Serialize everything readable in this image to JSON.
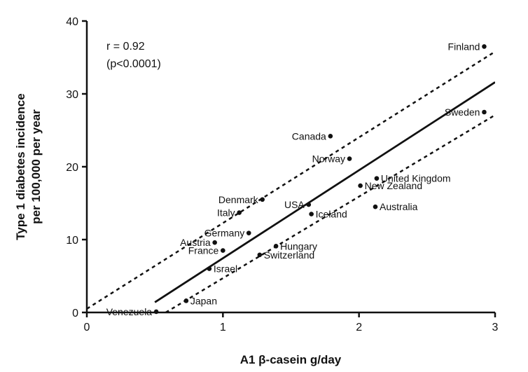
{
  "chart_data": {
    "type": "scatter",
    "xlabel": "A1 β-casein g/day",
    "ylabel_lines": [
      "Type 1 diabetes incidence",
      "per 100,000 per year"
    ],
    "xlim": [
      0,
      3
    ],
    "ylim": [
      0,
      40
    ],
    "xticks": [
      0,
      1,
      2,
      3
    ],
    "yticks": [
      0,
      10,
      20,
      30,
      40
    ],
    "annotations": [
      "r = 0.92",
      "(p<0.0001)"
    ],
    "grid": false,
    "points": [
      {
        "label": "Finland",
        "x": 2.92,
        "y": 36.5,
        "label_side": "left"
      },
      {
        "label": "Sweden",
        "x": 2.92,
        "y": 27.5,
        "label_side": "left"
      },
      {
        "label": "Canada",
        "x": 1.79,
        "y": 24.2,
        "label_side": "left"
      },
      {
        "label": "Norway",
        "x": 1.93,
        "y": 21.1,
        "label_side": "left"
      },
      {
        "label": "United Kingdom",
        "x": 2.13,
        "y": 18.4,
        "label_side": "right"
      },
      {
        "label": "New Zealand",
        "x": 2.01,
        "y": 17.4,
        "label_side": "right"
      },
      {
        "label": "Australia",
        "x": 2.12,
        "y": 14.5,
        "label_side": "right"
      },
      {
        "label": "Denmark",
        "x": 1.29,
        "y": 15.5,
        "label_side": "left"
      },
      {
        "label": "USA",
        "x": 1.63,
        "y": 14.8,
        "label_side": "left"
      },
      {
        "label": "Iceland",
        "x": 1.65,
        "y": 13.5,
        "label_side": "right"
      },
      {
        "label": "Italy",
        "x": 1.12,
        "y": 13.7,
        "label_side": "left"
      },
      {
        "label": "Germany",
        "x": 1.19,
        "y": 10.9,
        "label_side": "left"
      },
      {
        "label": "Austria",
        "x": 0.94,
        "y": 9.6,
        "label_side": "left"
      },
      {
        "label": "France",
        "x": 1.0,
        "y": 8.5,
        "label_side": "left"
      },
      {
        "label": "Hungary",
        "x": 1.39,
        "y": 9.1,
        "label_side": "right"
      },
      {
        "label": "Switzerland",
        "x": 1.27,
        "y": 7.9,
        "label_side": "right"
      },
      {
        "label": "Israel",
        "x": 0.9,
        "y": 6.0,
        "label_side": "right"
      },
      {
        "label": "Japan",
        "x": 0.73,
        "y": 1.6,
        "label_side": "right"
      },
      {
        "label": "Venezuela",
        "x": 0.51,
        "y": 0.1,
        "label_side": "left"
      }
    ],
    "regression_line": [
      [
        0.5,
        1.4
      ],
      [
        3.0,
        31.6
      ]
    ],
    "confidence_bands": {
      "upper": [
        [
          0.0,
          0.5
        ],
        [
          3.0,
          35.8
        ]
      ],
      "lower": [
        [
          0.58,
          0.0
        ],
        [
          3.0,
          27.1
        ]
      ]
    }
  }
}
